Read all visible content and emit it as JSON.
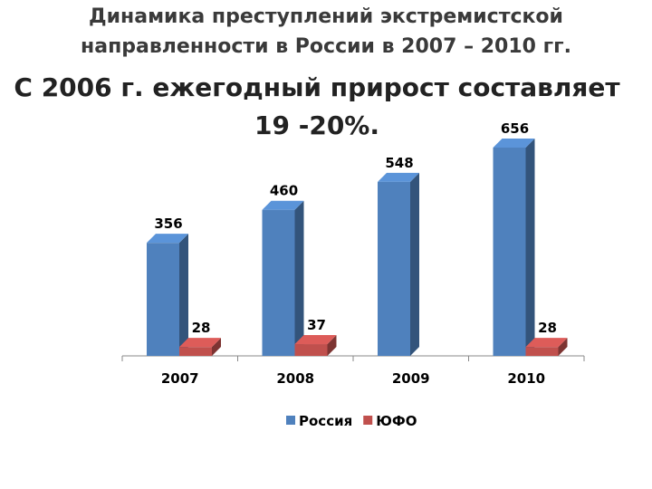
{
  "chart_data": {
    "type": "bar3d",
    "title": "Динамика преступлений экстремистской направленности в России в 2007 – 2010 гг.",
    "subtitle": "С 2006 г. ежегодный прирост составляет 19 -20%.",
    "categories": [
      "2007",
      "2008",
      "2009",
      "2010"
    ],
    "series": [
      {
        "name": "Россия",
        "color": "#4f81bd",
        "values": [
          356,
          460,
          548,
          656
        ]
      },
      {
        "name": "ЮФО",
        "color": "#c0504d",
        "values": [
          28,
          37,
          null,
          28
        ]
      }
    ],
    "legend": "bottom"
  }
}
